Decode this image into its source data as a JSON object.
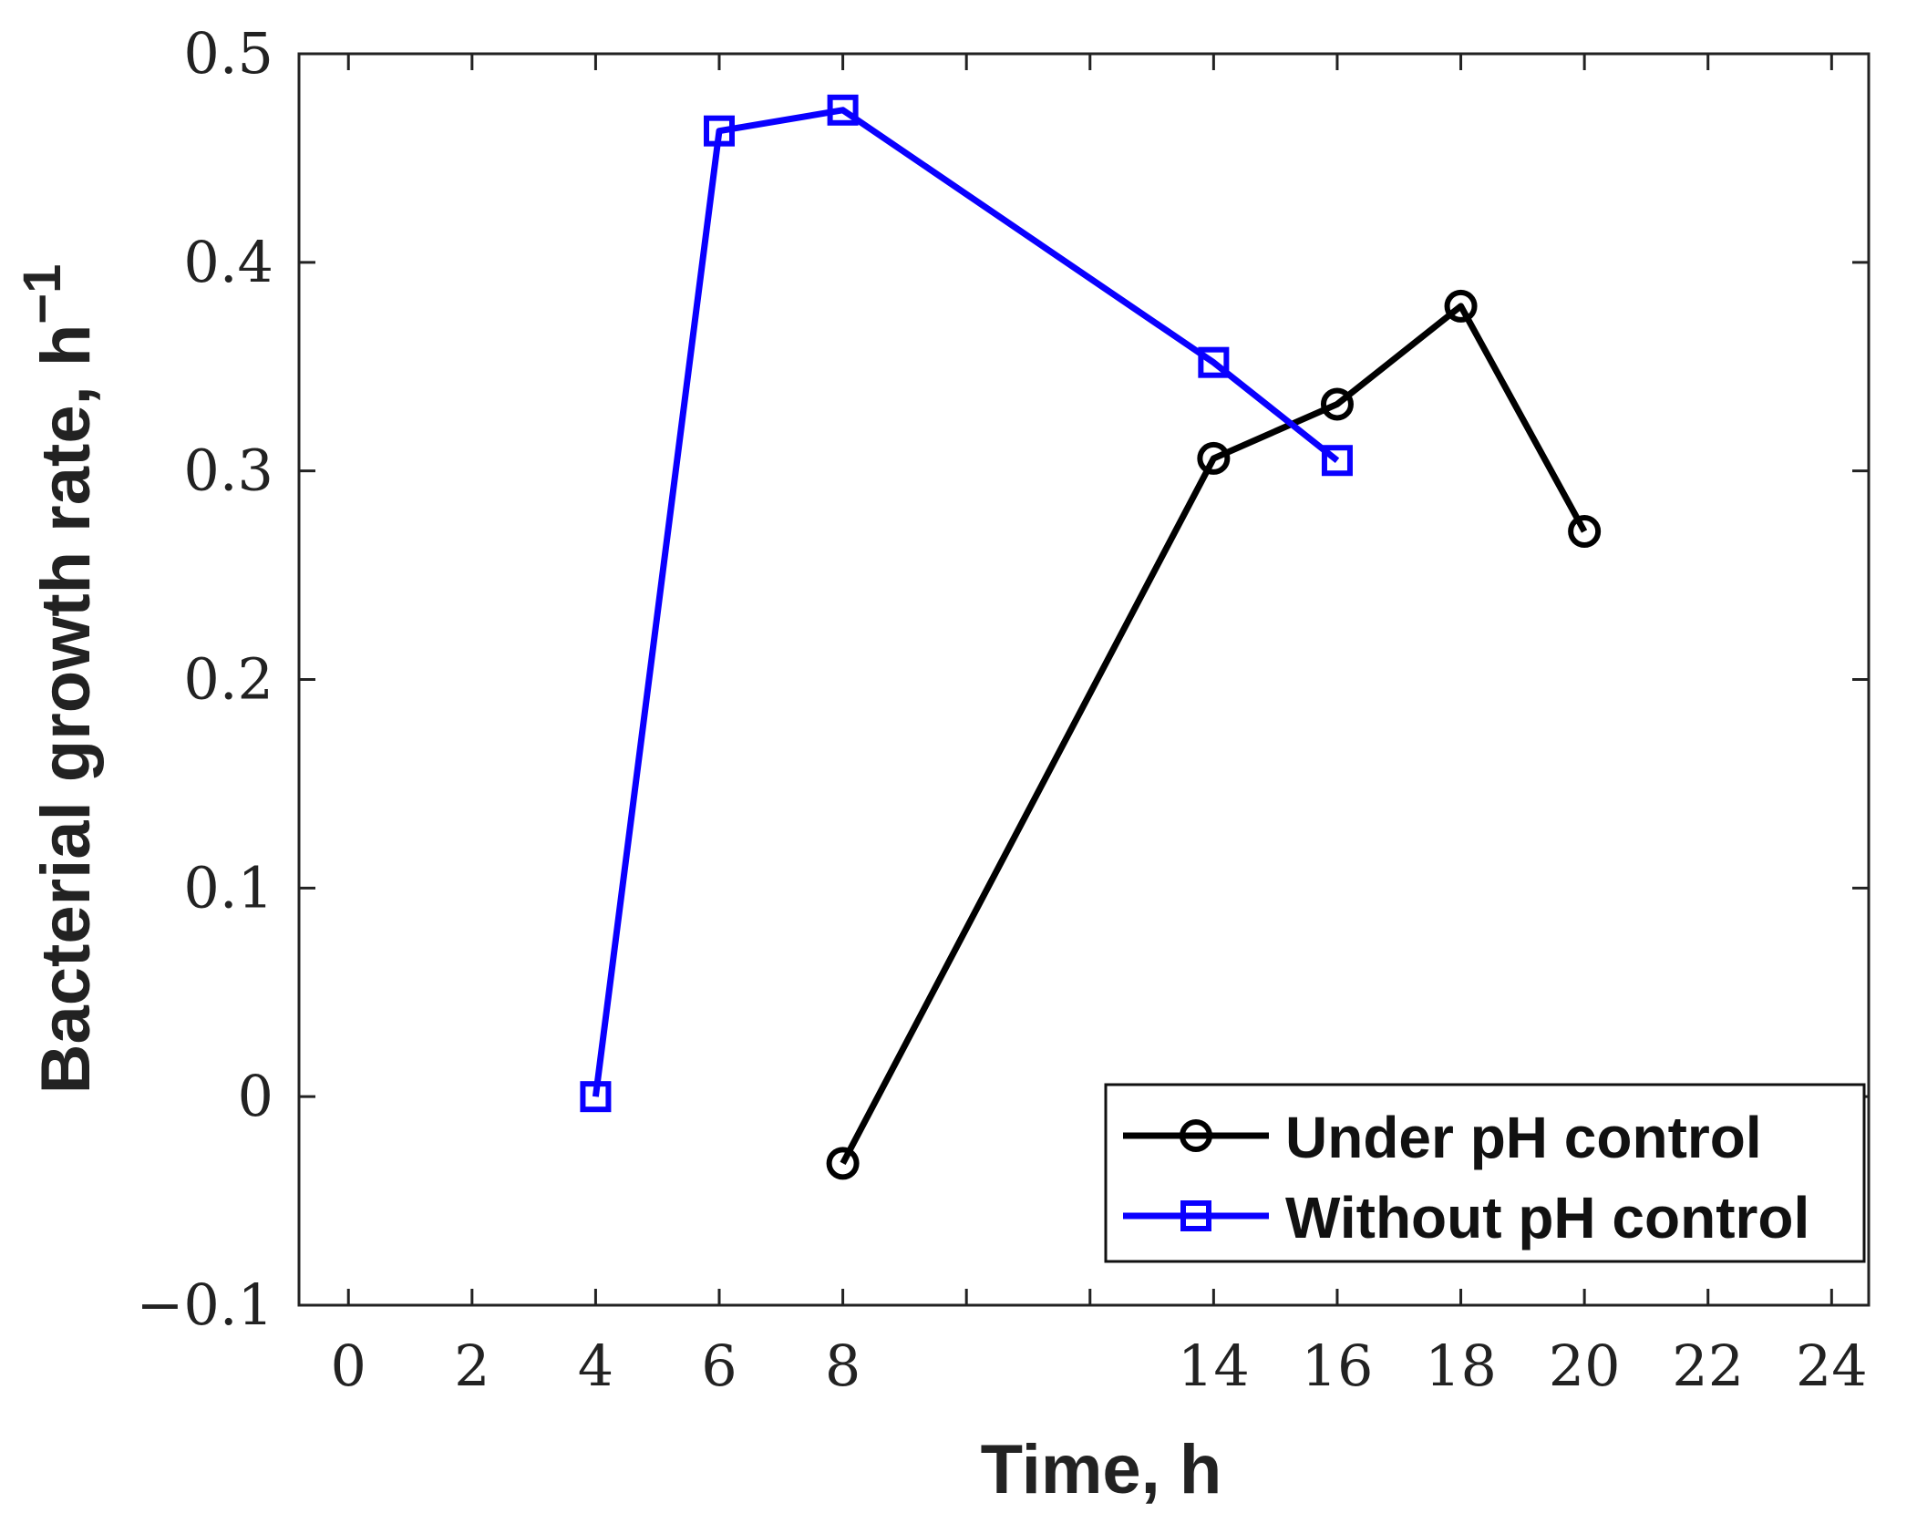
{
  "chart_data": {
    "type": "line",
    "title": "",
    "xlabel": "Time, h",
    "ylabel": "Bacterial growth rate, h",
    "ylabel_superscript": "−1",
    "xlim": [
      -0.8,
      24.6
    ],
    "ylim": [
      -0.1,
      0.5
    ],
    "xticks": [
      0,
      2,
      4,
      6,
      8,
      10,
      12,
      14,
      16,
      18,
      20,
      22,
      24
    ],
    "xtick_labels": [
      "0",
      "2",
      "4",
      "6",
      "8",
      "",
      "",
      "14",
      "16",
      "18",
      "20",
      "22",
      "24"
    ],
    "yticks": [
      -0.1,
      0,
      0.1,
      0.2,
      0.3,
      0.4,
      0.5
    ],
    "ytick_labels": [
      "−0.1",
      "0",
      "0.1",
      "0.2",
      "0.3",
      "0.4",
      "0.5"
    ],
    "grid": false,
    "legend_position": "bottom-right",
    "series": [
      {
        "name": "Under pH control",
        "color": "#000000",
        "marker": "circle",
        "x": [
          8,
          14,
          16,
          18,
          20
        ],
        "y": [
          -0.032,
          0.306,
          0.332,
          0.379,
          0.271
        ]
      },
      {
        "name": "Without pH control",
        "color": "#0a00ff",
        "marker": "square",
        "x": [
          4,
          6,
          8,
          14,
          16
        ],
        "y": [
          0.0,
          0.463,
          0.473,
          0.352,
          0.305
        ]
      }
    ]
  }
}
